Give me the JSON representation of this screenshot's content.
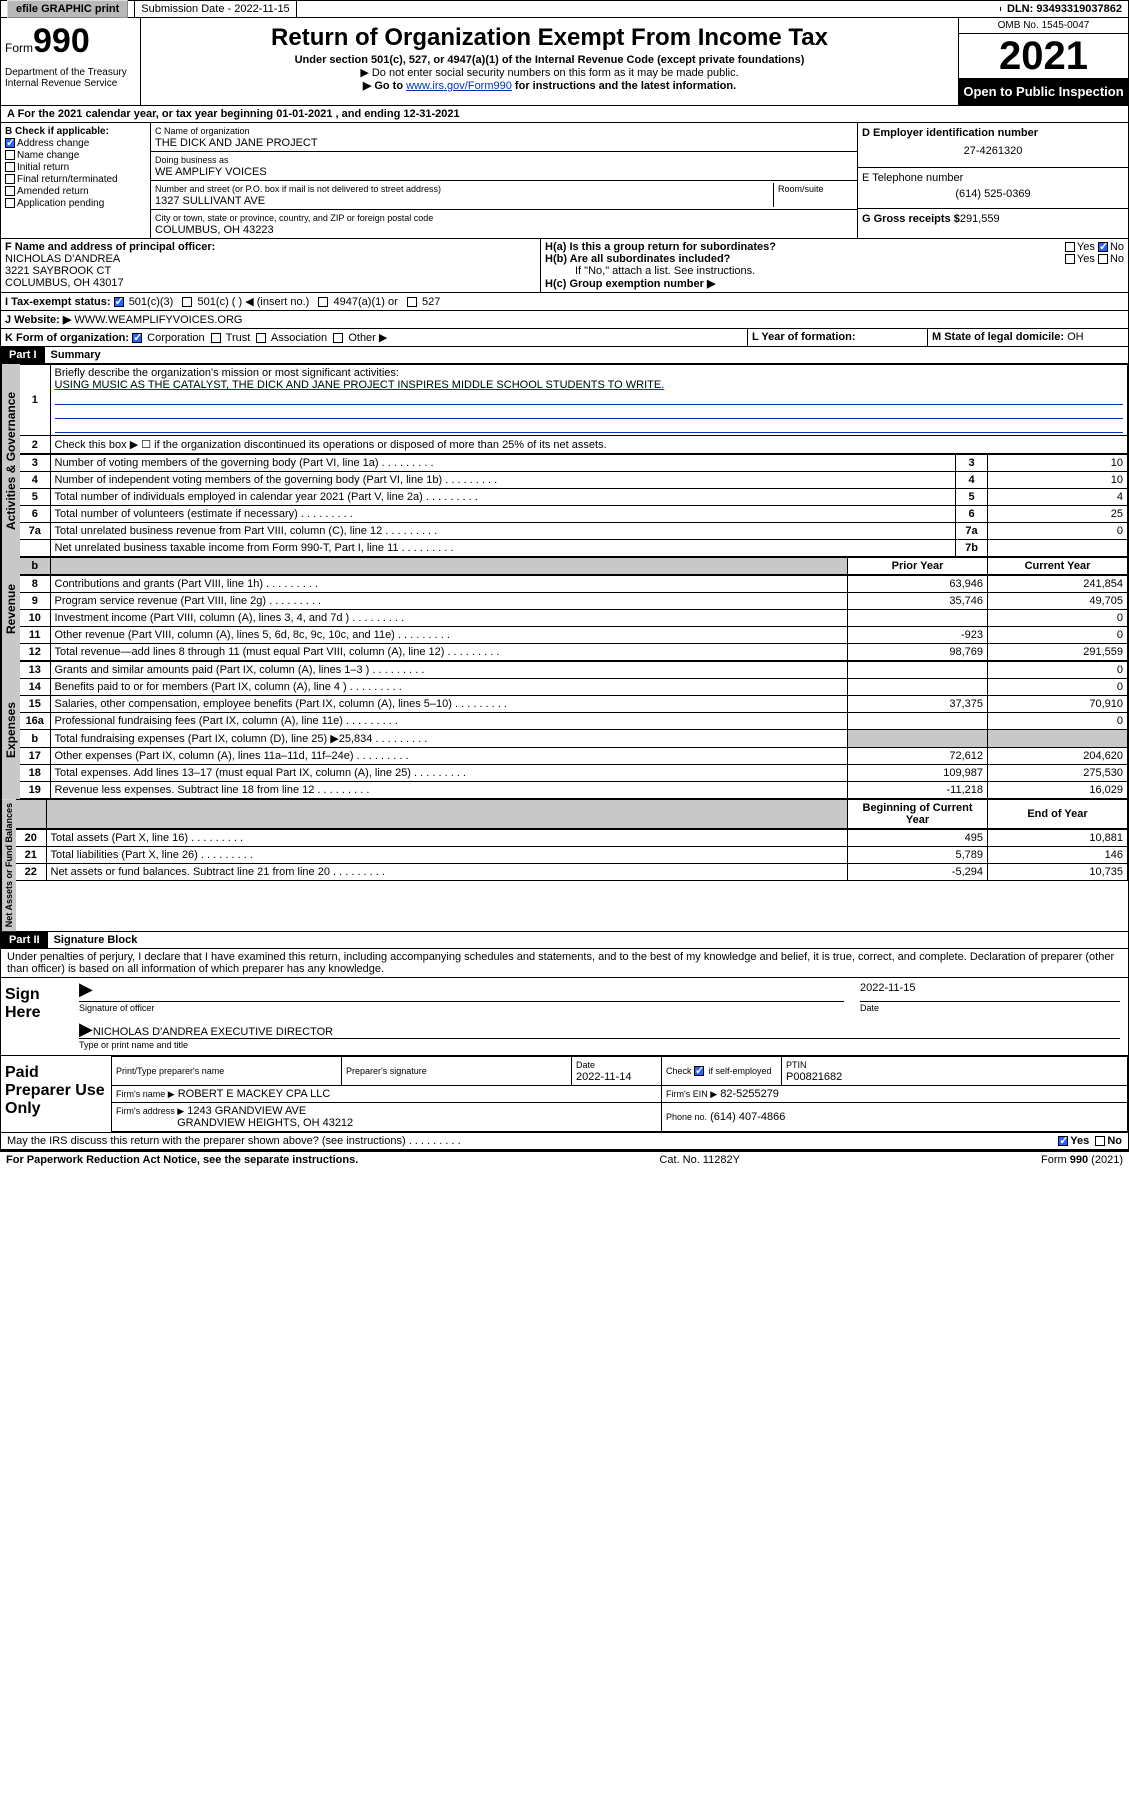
{
  "topbar": {
    "efile_label": "efile GRAPHIC print",
    "submission_label": "Submission Date - 2022-11-15",
    "dln_label": "DLN: 93493319037862"
  },
  "header": {
    "form_prefix": "Form",
    "form_number": "990",
    "dept": "Department of the Treasury Internal Revenue Service",
    "title": "Return of Organization Exempt From Income Tax",
    "subtitle": "Under section 501(c), 527, or 4947(a)(1) of the Internal Revenue Code (except private foundations)",
    "warn1": "▶ Do not enter social security numbers on this form as it may be made public.",
    "warn2_prefix": "▶ Go to ",
    "warn2_link": "www.irs.gov/Form990",
    "warn2_suffix": " for instructions and the latest information.",
    "omb": "OMB No. 1545-0047",
    "year": "2021",
    "openpub": "Open to Public Inspection"
  },
  "sectionA": "A For the 2021 calendar year, or tax year beginning 01-01-2021   , and ending 12-31-2021",
  "checkB": {
    "label": "B Check if applicable:",
    "items": [
      "Address change",
      "Name change",
      "Initial return",
      "Final return/terminated",
      "Amended return",
      "Application pending"
    ],
    "checked_index": 0
  },
  "org": {
    "name_label": "C Name of organization",
    "name": "THE DICK AND JANE PROJECT",
    "dba_label": "Doing business as",
    "dba": "WE AMPLIFY VOICES",
    "addr_label": "Number and street (or P.O. box if mail is not delivered to street address)",
    "room_label": "Room/suite",
    "addr": "1327 SULLIVANT AVE",
    "city_label": "City or town, state or province, country, and ZIP or foreign postal code",
    "city": "COLUMBUS, OH  43223"
  },
  "ein": {
    "label": "D Employer identification number",
    "value": "27-4261320"
  },
  "tel": {
    "label": "E Telephone number",
    "value": "(614) 525-0369"
  },
  "gross": {
    "label": "G Gross receipts $",
    "value": "291,559"
  },
  "officer": {
    "label": "F  Name and address of principal officer:",
    "name": "NICHOLAS D'ANDREA",
    "addr1": "3221 SAYBROOK CT",
    "addr2": "COLUMBUS, OH  43017"
  },
  "h": {
    "ha": "H(a)  Is this a group return for subordinates?",
    "hb": "H(b)  Are all subordinates included?",
    "hb_note": "If \"No,\" attach a list. See instructions.",
    "hc": "H(c)  Group exemption number ▶",
    "yes": "Yes",
    "no": "No"
  },
  "tax_exempt": {
    "label": "I     Tax-exempt status:",
    "opts": [
      "501(c)(3)",
      "501(c) (  ) ◀ (insert no.)",
      "4947(a)(1) or",
      "527"
    ]
  },
  "website": {
    "label": "J    Website: ▶",
    "value": " WWW.WEAMPLIFYVOICES.ORG"
  },
  "formK": {
    "label": "K Form of organization:",
    "opts": [
      "Corporation",
      "Trust",
      "Association",
      "Other ▶"
    ]
  },
  "yearL": "L Year of formation:",
  "stateM": {
    "label": "M State of legal domicile: ",
    "value": "OH"
  },
  "part1": {
    "hdr": "Part I",
    "title": "Summary"
  },
  "mission": {
    "num": "1",
    "label": "Briefly describe the organization's mission or most significant activities:",
    "text": "USING MUSIC AS THE CATALYST, THE DICK AND JANE PROJECT INSPIRES MIDDLE SCHOOL STUDENTS TO WRITE."
  },
  "line2": "Check this box ▶ ☐  if the organization discontinued its operations or disposed of more than 25% of its net assets.",
  "governance_rows": [
    {
      "n": "3",
      "desc": "Number of voting members of the governing body (Part VI, line 1a)",
      "key": "3",
      "val": "10"
    },
    {
      "n": "4",
      "desc": "Number of independent voting members of the governing body (Part VI, line 1b)",
      "key": "4",
      "val": "10"
    },
    {
      "n": "5",
      "desc": "Total number of individuals employed in calendar year 2021 (Part V, line 2a)",
      "key": "5",
      "val": "4"
    },
    {
      "n": "6",
      "desc": "Total number of volunteers (estimate if necessary)",
      "key": "6",
      "val": "25"
    },
    {
      "n": "7a",
      "desc": "Total unrelated business revenue from Part VIII, column (C), line 12",
      "key": "7a",
      "val": "0"
    },
    {
      "n": "",
      "desc": "Net unrelated business taxable income from Form 990-T, Part I, line 11",
      "key": "7b",
      "val": ""
    }
  ],
  "col_prior": "Prior Year",
  "col_current": "Current Year",
  "revenue_rows": [
    {
      "n": "8",
      "desc": "Contributions and grants (Part VIII, line 1h)",
      "prior": "63,946",
      "curr": "241,854"
    },
    {
      "n": "9",
      "desc": "Program service revenue (Part VIII, line 2g)",
      "prior": "35,746",
      "curr": "49,705"
    },
    {
      "n": "10",
      "desc": "Investment income (Part VIII, column (A), lines 3, 4, and 7d )",
      "prior": "",
      "curr": "0"
    },
    {
      "n": "11",
      "desc": "Other revenue (Part VIII, column (A), lines 5, 6d, 8c, 9c, 10c, and 11e)",
      "prior": "-923",
      "curr": "0"
    },
    {
      "n": "12",
      "desc": "Total revenue—add lines 8 through 11 (must equal Part VIII, column (A), line 12)",
      "prior": "98,769",
      "curr": "291,559"
    }
  ],
  "expense_rows": [
    {
      "n": "13",
      "desc": "Grants and similar amounts paid (Part IX, column (A), lines 1–3 )",
      "prior": "",
      "curr": "0"
    },
    {
      "n": "14",
      "desc": "Benefits paid to or for members (Part IX, column (A), line 4 )",
      "prior": "",
      "curr": "0"
    },
    {
      "n": "15",
      "desc": "Salaries, other compensation, employee benefits (Part IX, column (A), lines 5–10)",
      "prior": "37,375",
      "curr": "70,910"
    },
    {
      "n": "16a",
      "desc": "Professional fundraising fees (Part IX, column (A), line 11e)",
      "prior": "",
      "curr": "0"
    },
    {
      "n": "b",
      "desc": "Total fundraising expenses (Part IX, column (D), line 25) ▶25,834",
      "prior": "shade",
      "curr": "shade"
    },
    {
      "n": "17",
      "desc": "Other expenses (Part IX, column (A), lines 11a–11d, 11f–24e)",
      "prior": "72,612",
      "curr": "204,620"
    },
    {
      "n": "18",
      "desc": "Total expenses. Add lines 13–17 (must equal Part IX, column (A), line 25)",
      "prior": "109,987",
      "curr": "275,530"
    },
    {
      "n": "19",
      "desc": "Revenue less expenses. Subtract line 18 from line 12",
      "prior": "-11,218",
      "curr": "16,029"
    }
  ],
  "col_begin": "Beginning of Current Year",
  "col_end": "End of Year",
  "asset_rows": [
    {
      "n": "20",
      "desc": "Total assets (Part X, line 16)",
      "prior": "495",
      "curr": "10,881"
    },
    {
      "n": "21",
      "desc": "Total liabilities (Part X, line 26)",
      "prior": "5,789",
      "curr": "146"
    },
    {
      "n": "22",
      "desc": "Net assets or fund balances. Subtract line 21 from line 20",
      "prior": "-5,294",
      "curr": "10,735"
    }
  ],
  "vlabels": {
    "gov": "Activities & Governance",
    "rev": "Revenue",
    "exp": "Expenses",
    "net": "Net Assets or Fund Balances"
  },
  "part2": {
    "hdr": "Part II",
    "title": "Signature Block"
  },
  "perjury": "Under penalties of perjury, I declare that I have examined this return, including accompanying schedules and statements, and to the best of my knowledge and belief, it is true, correct, and complete. Declaration of preparer (other than officer) is based on all information of which preparer has any knowledge.",
  "sign": {
    "here": "Sign Here",
    "sig_of_officer": "Signature of officer",
    "date_label": "Date",
    "date": "2022-11-15",
    "name": "NICHOLAS D'ANDREA  EXECUTIVE DIRECTOR",
    "name_label": "Type or print name and title"
  },
  "paid": {
    "label": "Paid Preparer Use Only",
    "col_name": "Print/Type preparer's name",
    "col_sig": "Preparer's signature",
    "col_date": "Date",
    "date": "2022-11-14",
    "check_label": "Check ",
    "check_if": " if self-employed",
    "ptin_label": "PTIN",
    "ptin": "P00821682",
    "firm_name_label": "Firm's name    ▶",
    "firm_name": "ROBERT E MACKEY CPA LLC",
    "firm_ein_label": "Firm's EIN ▶",
    "firm_ein": "82-5255279",
    "firm_addr_label": "Firm's address ▶",
    "firm_addr1": "1243 GRANDVIEW AVE",
    "firm_addr2": "GRANDVIEW HEIGHTS, OH  43212",
    "phone_label": "Phone no.",
    "phone": "(614) 407-4866"
  },
  "discuss": "May the IRS discuss this return with the preparer shown above? (see instructions)",
  "footer": {
    "left": "For Paperwork Reduction Act Notice, see the separate instructions.",
    "mid": "Cat. No. 11282Y",
    "right": "Form 990 (2021)"
  }
}
